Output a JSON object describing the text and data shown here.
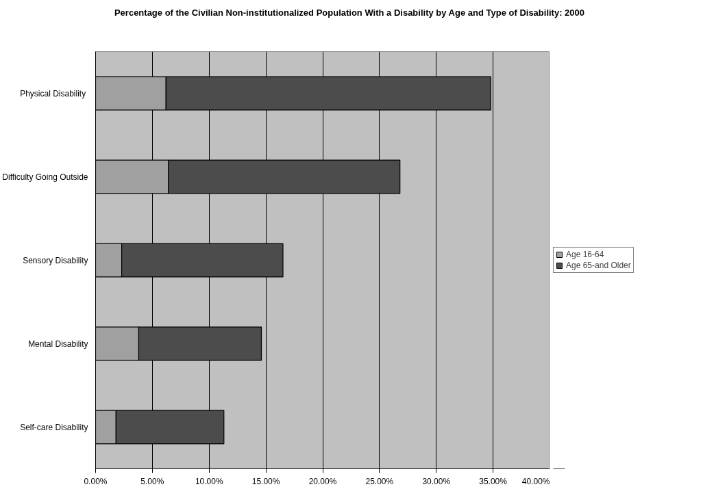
{
  "chart_data": {
    "type": "bar",
    "orientation": "horizontal",
    "stacked": true,
    "title": "Percentage of the Civilian Non-institutionalized Population With a Disability by Age and Type of Disability: 2000",
    "categories": [
      "Physical  Disability",
      "Difficulty Going Outside",
      "Sensory Disability",
      "Mental Disability",
      "Self-care Disability"
    ],
    "series": [
      {
        "name": "Age 16-64",
        "color": "#a0a0a0",
        "values": [
          6.2,
          6.4,
          2.3,
          3.8,
          1.8
        ]
      },
      {
        "name": "Age 65-and Older",
        "color": "#4c4c4c",
        "values": [
          28.6,
          20.4,
          14.2,
          10.8,
          9.5
        ]
      }
    ],
    "xlim": [
      0,
      40
    ],
    "xticks": [
      {
        "value": 0,
        "label": "0.00%"
      },
      {
        "value": 5,
        "label": "5.00%"
      },
      {
        "value": 10,
        "label": "10.00%"
      },
      {
        "value": 15,
        "label": "15.00%"
      },
      {
        "value": 20,
        "label": "20.00%"
      },
      {
        "value": 25,
        "label": "25.00%"
      },
      {
        "value": 30,
        "label": "30.00%"
      },
      {
        "value": 35,
        "label": "35.00%"
      },
      {
        "value": 40,
        "label": "40.00%"
      }
    ],
    "grid": "x",
    "legend": "right"
  }
}
